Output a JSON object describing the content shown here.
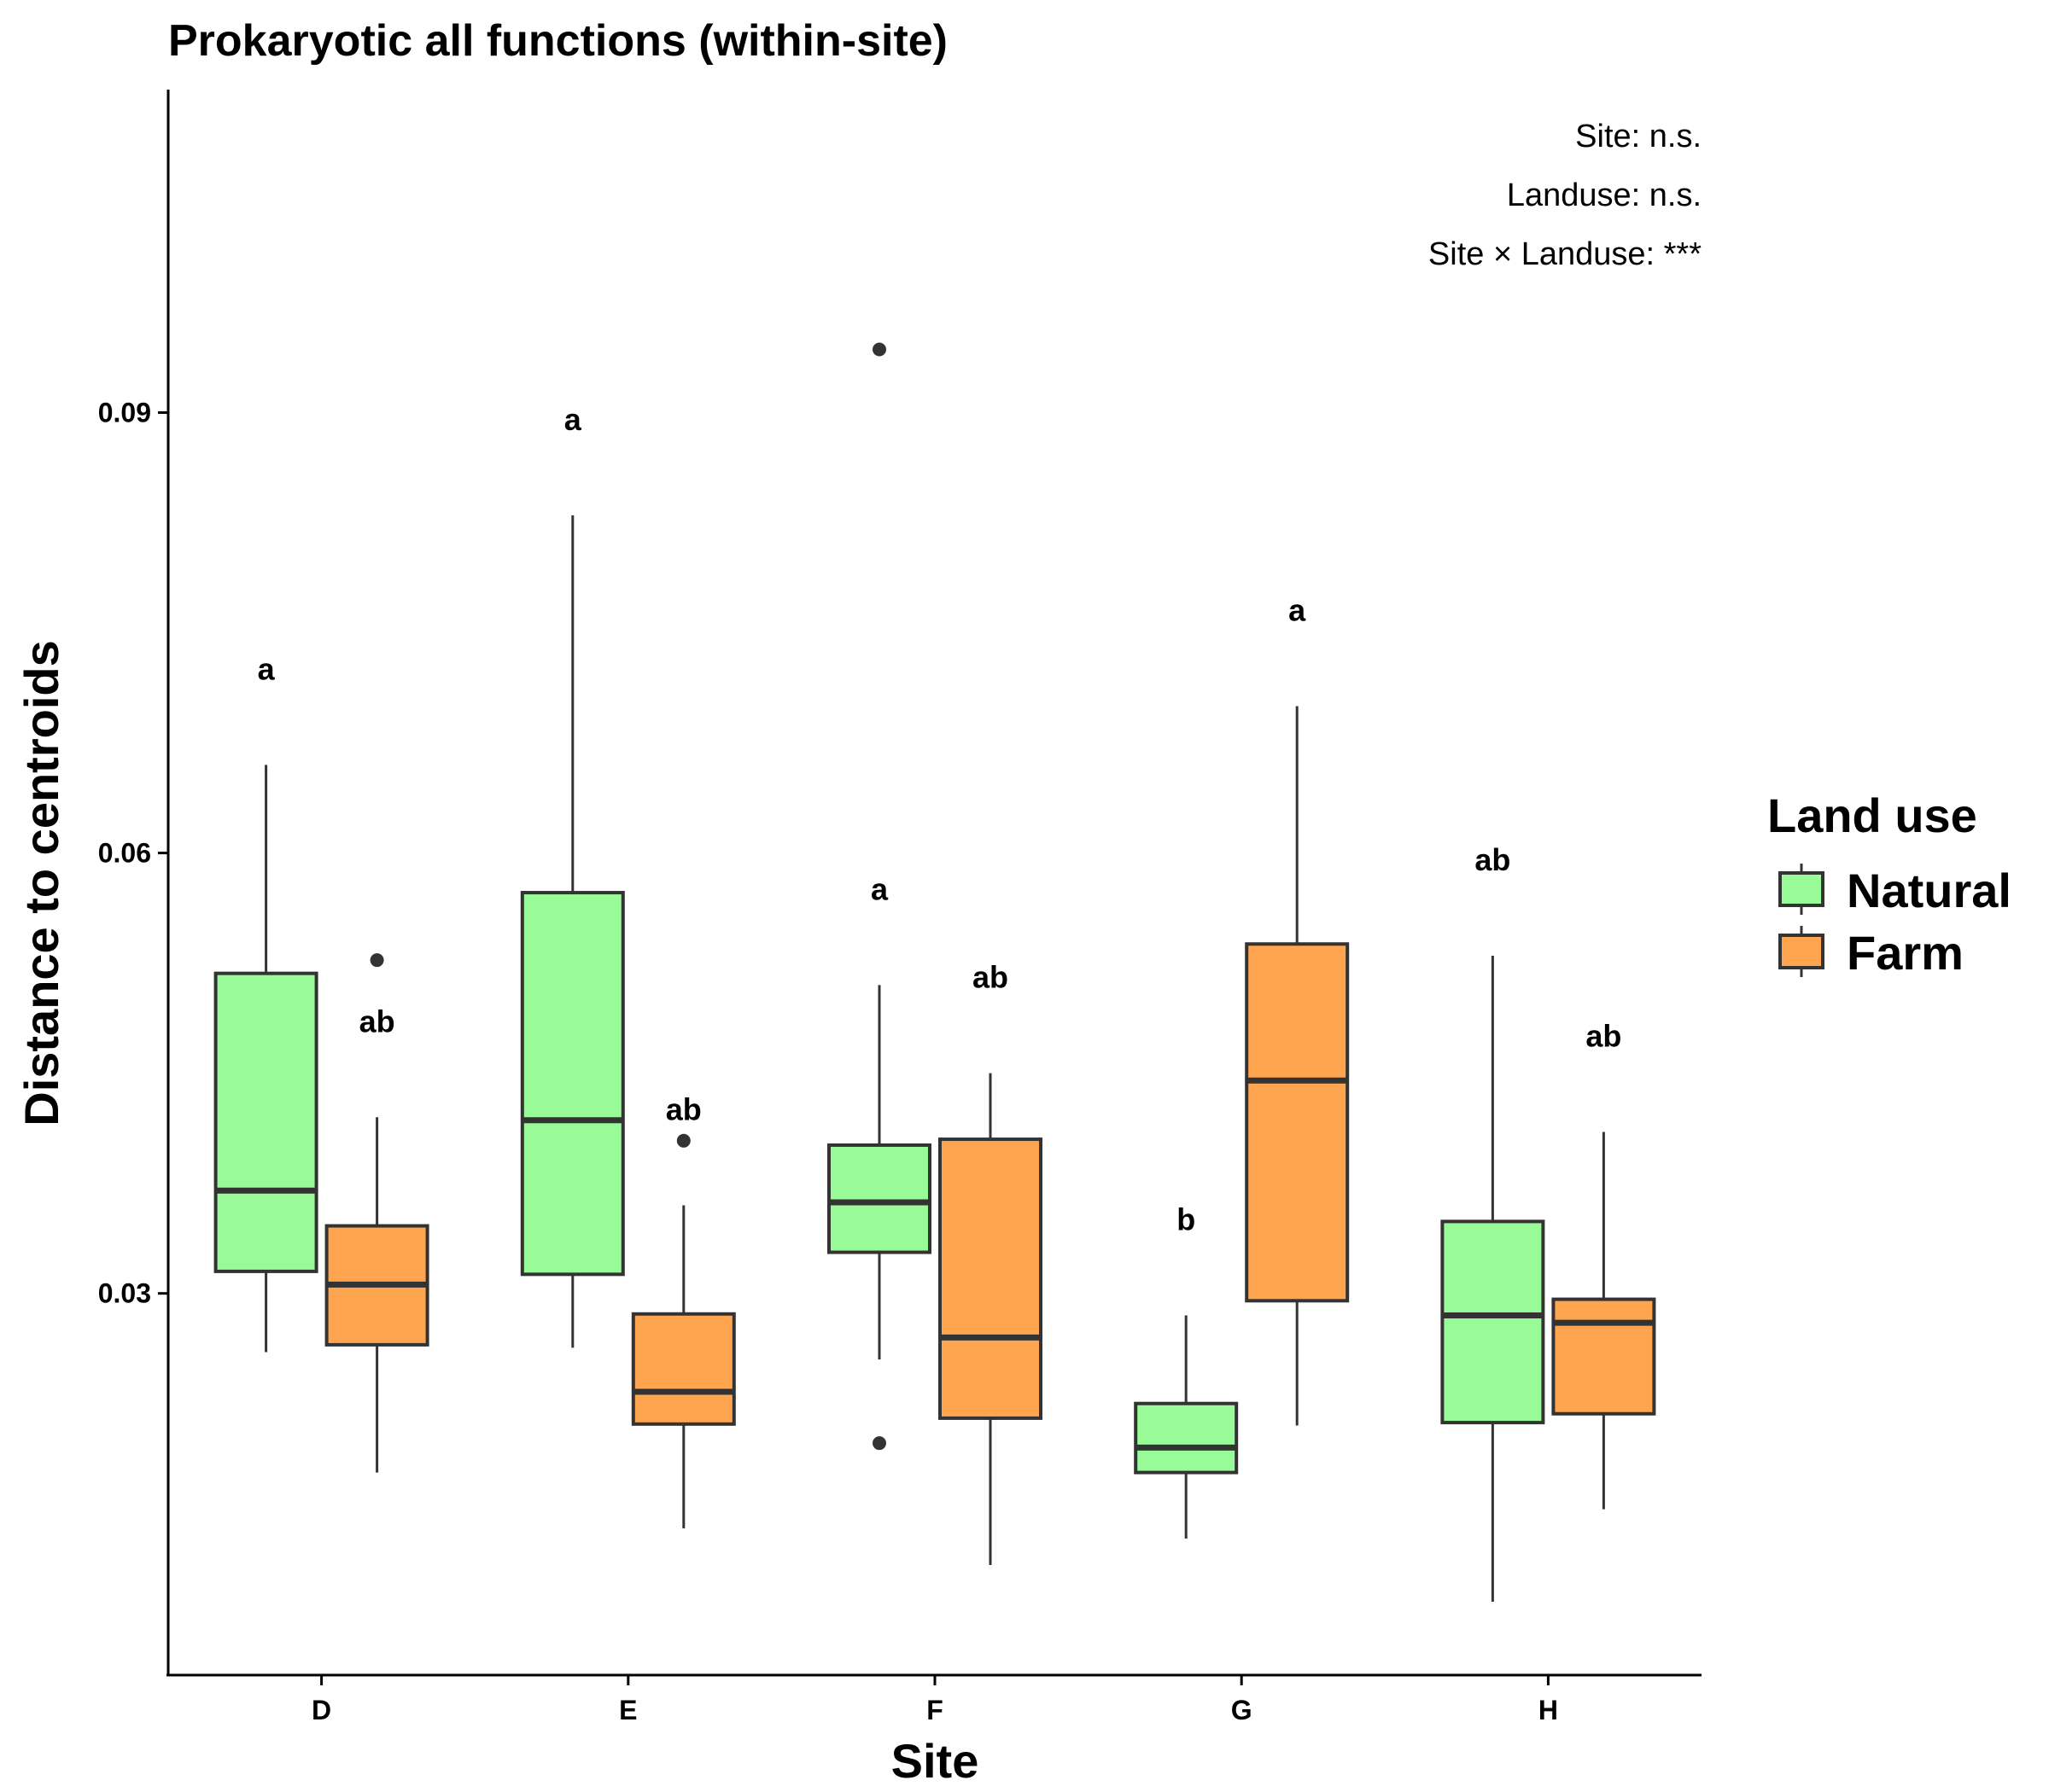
{
  "chart_data": {
    "type": "box",
    "title": "Prokaryotic all functions (within-site)",
    "xlabel": "Site",
    "ylabel": "Distance to centroids",
    "categories": [
      "D",
      "E",
      "F",
      "G",
      "H"
    ],
    "ylim": [
      0.004,
      0.112
    ],
    "yticks": [
      0.03,
      0.06,
      0.09
    ],
    "ytick_labels": [
      "0.03",
      "0.06",
      "0.09"
    ],
    "legend_title": "Land use",
    "legend_position": "right",
    "grid": false,
    "colors": {
      "Natural": "#98FB98",
      "Farm": "#FFA54F",
      "stroke": "#333333"
    },
    "annotations": [
      "Site: n.s.",
      "Landuse: n.s.",
      "Site × Landuse: ***"
    ],
    "series": [
      {
        "name": "Natural",
        "boxes": [
          {
            "category": "D",
            "whisker_low": 0.026,
            "q1": 0.0315,
            "median": 0.037,
            "q3": 0.0518,
            "whisker_high": 0.066,
            "outliers": [],
            "letter": "a"
          },
          {
            "category": "E",
            "whisker_low": 0.0263,
            "q1": 0.0313,
            "median": 0.0418,
            "q3": 0.0573,
            "whisker_high": 0.083,
            "outliers": [],
            "letter": "a"
          },
          {
            "category": "F",
            "whisker_low": 0.0255,
            "q1": 0.0328,
            "median": 0.0362,
            "q3": 0.0401,
            "whisker_high": 0.051,
            "outliers": [
              0.0943,
              0.0198
            ],
            "letter": "a"
          },
          {
            "category": "G",
            "whisker_low": 0.0133,
            "q1": 0.0178,
            "median": 0.0195,
            "q3": 0.0225,
            "whisker_high": 0.0285,
            "outliers": [],
            "letter": "b"
          },
          {
            "category": "H",
            "whisker_low": 0.009,
            "q1": 0.0212,
            "median": 0.0285,
            "q3": 0.0349,
            "whisker_high": 0.053,
            "outliers": [],
            "letter": "ab"
          }
        ]
      },
      {
        "name": "Farm",
        "boxes": [
          {
            "category": "D",
            "whisker_low": 0.0178,
            "q1": 0.0265,
            "median": 0.0306,
            "q3": 0.0346,
            "whisker_high": 0.042,
            "outliers": [
              0.0527
            ],
            "letter": "ab"
          },
          {
            "category": "E",
            "whisker_low": 0.014,
            "q1": 0.0211,
            "median": 0.0233,
            "q3": 0.0286,
            "whisker_high": 0.036,
            "outliers": [
              0.0404
            ],
            "letter": "ab"
          },
          {
            "category": "F",
            "whisker_low": 0.0115,
            "q1": 0.0215,
            "median": 0.027,
            "q3": 0.0405,
            "whisker_high": 0.045,
            "outliers": [],
            "letter": "ab"
          },
          {
            "category": "G",
            "whisker_low": 0.021,
            "q1": 0.0295,
            "median": 0.0445,
            "q3": 0.0538,
            "whisker_high": 0.07,
            "outliers": [],
            "letter": "a"
          },
          {
            "category": "H",
            "whisker_low": 0.0153,
            "q1": 0.0218,
            "median": 0.028,
            "q3": 0.0296,
            "whisker_high": 0.041,
            "outliers": [],
            "letter": "ab"
          }
        ]
      }
    ]
  }
}
